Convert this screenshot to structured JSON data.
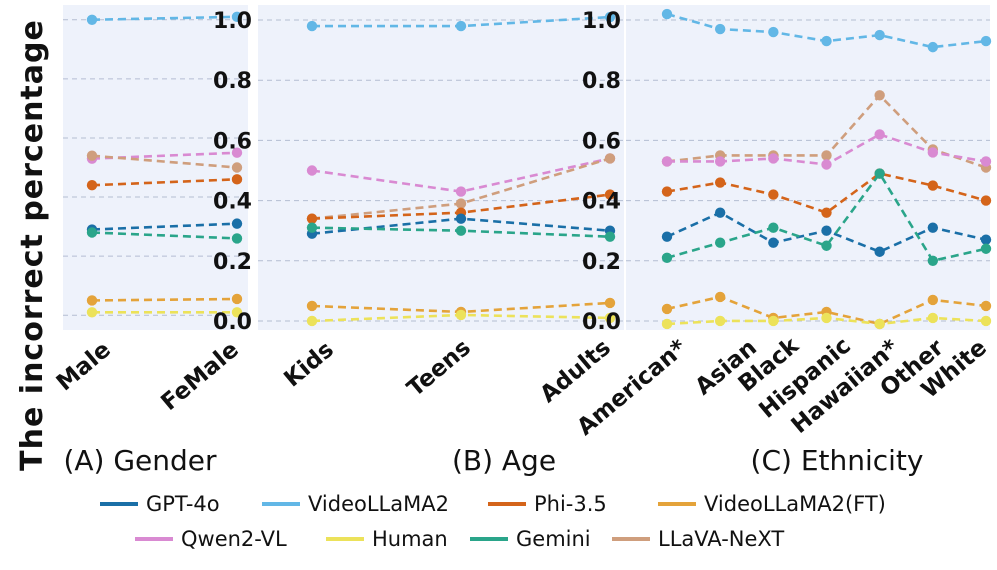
{
  "ylabel": "The incorrect percentage",
  "colors": {
    "plot_bg": "#eef2fb",
    "grid": "#b4bdd2"
  },
  "legend": [
    {
      "name": "GPT-4o",
      "color": "#1a6fa7"
    },
    {
      "name": "VideoLLaMA2",
      "color": "#62b7e6"
    },
    {
      "name": "Phi-3.5",
      "color": "#d4641a"
    },
    {
      "name": "VideoLLaMA2(FT)",
      "color": "#e4a33a"
    },
    {
      "name": "Qwen2-VL",
      "color": "#d98ad2"
    },
    {
      "name": "Human",
      "color": "#ece25a"
    },
    {
      "name": "Gemini",
      "color": "#2aa58a"
    },
    {
      "name": "LLaVA-NeXT",
      "color": "#cf9e7d"
    }
  ],
  "chart_data": [
    {
      "type": "line",
      "title": "(A) Gender",
      "categories": [
        "Male",
        "FeMale"
      ],
      "ylim": [
        -0.05,
        1.05
      ],
      "yticks": [],
      "series": [
        {
          "name": "VideoLLaMA2",
          "values": [
            1.0,
            1.01
          ]
        },
        {
          "name": "Qwen2-VL",
          "values": [
            0.53,
            0.55
          ]
        },
        {
          "name": "LLaVA-NeXT",
          "values": [
            0.54,
            0.5
          ]
        },
        {
          "name": "Phi-3.5",
          "values": [
            0.44,
            0.46
          ]
        },
        {
          "name": "GPT-4o",
          "values": [
            0.29,
            0.31
          ]
        },
        {
          "name": "Gemini",
          "values": [
            0.28,
            0.26
          ]
        },
        {
          "name": "VideoLLaMA2(FT)",
          "values": [
            0.05,
            0.055
          ]
        },
        {
          "name": "Human",
          "values": [
            0.01,
            0.01
          ]
        }
      ]
    },
    {
      "type": "line",
      "title": "(B) Age",
      "categories": [
        "Kids",
        "Teens",
        "Adults"
      ],
      "ylim": [
        -0.03,
        1.05
      ],
      "yticks": [
        "0.0",
        "0.2",
        "0.4",
        "0.6",
        "0.8",
        "1.0"
      ],
      "series": [
        {
          "name": "VideoLLaMA2",
          "values": [
            0.98,
            0.98,
            1.01
          ]
        },
        {
          "name": "Qwen2-VL",
          "values": [
            0.5,
            0.43,
            0.54
          ]
        },
        {
          "name": "LLaVA-NeXT",
          "values": [
            0.34,
            0.39,
            0.54
          ]
        },
        {
          "name": "Phi-3.5",
          "values": [
            0.34,
            0.36,
            0.42
          ]
        },
        {
          "name": "GPT-4o",
          "values": [
            0.29,
            0.34,
            0.3
          ]
        },
        {
          "name": "Gemini",
          "values": [
            0.31,
            0.3,
            0.28
          ]
        },
        {
          "name": "VideoLLaMA2(FT)",
          "values": [
            0.05,
            0.03,
            0.06
          ]
        },
        {
          "name": "Human",
          "values": [
            0.0,
            0.02,
            0.01
          ]
        }
      ]
    },
    {
      "type": "line",
      "title": "(C) Ethnicity",
      "categories": [
        "American*",
        "Asian",
        "Black",
        "Hispanic",
        "Hawaiian*",
        "Other",
        "White"
      ],
      "ylim": [
        -0.03,
        1.05
      ],
      "yticks": [
        "0.0",
        "0.2",
        "0.4",
        "0.6",
        "0.8",
        "1.0"
      ],
      "series": [
        {
          "name": "VideoLLaMA2",
          "values": [
            1.02,
            0.97,
            0.96,
            0.93,
            0.95,
            0.91,
            0.93
          ]
        },
        {
          "name": "LLaVA-NeXT",
          "values": [
            0.53,
            0.55,
            0.55,
            0.55,
            0.75,
            0.57,
            0.51
          ]
        },
        {
          "name": "Qwen2-VL",
          "values": [
            0.53,
            0.53,
            0.54,
            0.52,
            0.62,
            0.56,
            0.53
          ]
        },
        {
          "name": "Phi-3.5",
          "values": [
            0.43,
            0.46,
            0.42,
            0.36,
            0.49,
            0.45,
            0.4
          ]
        },
        {
          "name": "GPT-4o",
          "values": [
            0.28,
            0.36,
            0.26,
            0.3,
            0.23,
            0.31,
            0.27
          ]
        },
        {
          "name": "Gemini",
          "values": [
            0.21,
            0.26,
            0.31,
            0.25,
            0.49,
            0.2,
            0.24
          ]
        },
        {
          "name": "VideoLLaMA2(FT)",
          "values": [
            0.04,
            0.08,
            0.01,
            0.03,
            -0.01,
            0.07,
            0.05
          ]
        },
        {
          "name": "Human",
          "values": [
            -0.01,
            0.0,
            0.0,
            0.01,
            -0.01,
            0.01,
            0.0
          ]
        }
      ]
    }
  ]
}
